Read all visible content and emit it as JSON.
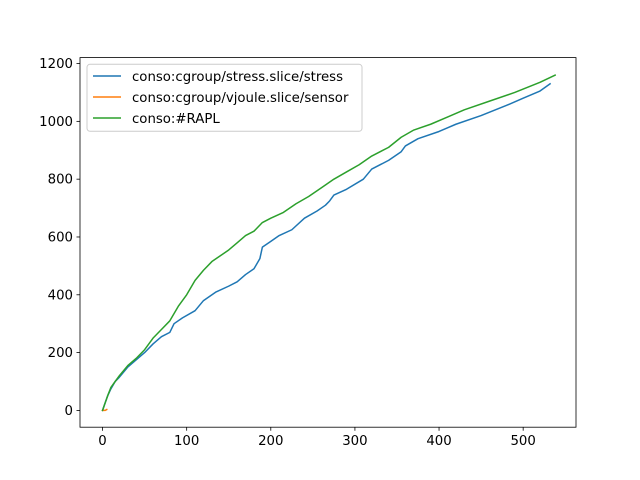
{
  "chart_data": {
    "type": "line",
    "title": "",
    "xlabel": "",
    "ylabel": "",
    "xlim": [
      -26.8,
      562.8
    ],
    "ylim": [
      -58.1,
      1220.6
    ],
    "xticks": [
      0,
      100,
      200,
      300,
      400,
      500
    ],
    "yticks": [
      0,
      200,
      400,
      600,
      800,
      1000,
      1200
    ],
    "grid": false,
    "legend_position": "top-left",
    "series": [
      {
        "name": "conso:cgroup/stress.slice/stress",
        "color": "#1f77b4",
        "points": [
          [
            0,
            0
          ],
          [
            3,
            25
          ],
          [
            6,
            50
          ],
          [
            10,
            75
          ],
          [
            15,
            100
          ],
          [
            20,
            115
          ],
          [
            30,
            150
          ],
          [
            40,
            175
          ],
          [
            50,
            200
          ],
          [
            60,
            230
          ],
          [
            70,
            255
          ],
          [
            80,
            270
          ],
          [
            85,
            300
          ],
          [
            95,
            320
          ],
          [
            110,
            345
          ],
          [
            120,
            380
          ],
          [
            135,
            410
          ],
          [
            150,
            430
          ],
          [
            160,
            445
          ],
          [
            170,
            470
          ],
          [
            180,
            490
          ],
          [
            187,
            525
          ],
          [
            190,
            565
          ],
          [
            200,
            585
          ],
          [
            210,
            605
          ],
          [
            225,
            625
          ],
          [
            240,
            665
          ],
          [
            255,
            690
          ],
          [
            265,
            710
          ],
          [
            270,
            725
          ],
          [
            275,
            745
          ],
          [
            290,
            765
          ],
          [
            310,
            800
          ],
          [
            320,
            835
          ],
          [
            340,
            865
          ],
          [
            355,
            895
          ],
          [
            360,
            915
          ],
          [
            375,
            940
          ],
          [
            400,
            965
          ],
          [
            420,
            990
          ],
          [
            450,
            1020
          ],
          [
            480,
            1055
          ],
          [
            500,
            1080
          ],
          [
            520,
            1105
          ],
          [
            532,
            1130
          ]
        ]
      },
      {
        "name": "conso:cgroup/vjoule.slice/sensor",
        "color": "#ff7f0e",
        "points": [
          [
            0,
            0
          ],
          [
            3,
            0
          ],
          [
            5,
            3
          ]
        ]
      },
      {
        "name": "conso:#RAPL",
        "color": "#2ca02c",
        "points": [
          [
            0,
            0
          ],
          [
            3,
            25
          ],
          [
            6,
            50
          ],
          [
            10,
            80
          ],
          [
            15,
            100
          ],
          [
            20,
            120
          ],
          [
            30,
            155
          ],
          [
            40,
            180
          ],
          [
            50,
            210
          ],
          [
            60,
            250
          ],
          [
            70,
            280
          ],
          [
            80,
            310
          ],
          [
            90,
            360
          ],
          [
            100,
            400
          ],
          [
            110,
            450
          ],
          [
            120,
            485
          ],
          [
            130,
            515
          ],
          [
            140,
            535
          ],
          [
            150,
            555
          ],
          [
            160,
            580
          ],
          [
            170,
            605
          ],
          [
            180,
            620
          ],
          [
            190,
            650
          ],
          [
            200,
            665
          ],
          [
            215,
            685
          ],
          [
            230,
            715
          ],
          [
            245,
            740
          ],
          [
            260,
            770
          ],
          [
            275,
            800
          ],
          [
            290,
            825
          ],
          [
            305,
            850
          ],
          [
            320,
            880
          ],
          [
            340,
            910
          ],
          [
            355,
            945
          ],
          [
            370,
            970
          ],
          [
            390,
            990
          ],
          [
            410,
            1015
          ],
          [
            430,
            1040
          ],
          [
            460,
            1070
          ],
          [
            490,
            1100
          ],
          [
            520,
            1135
          ],
          [
            538,
            1160
          ]
        ]
      }
    ]
  }
}
